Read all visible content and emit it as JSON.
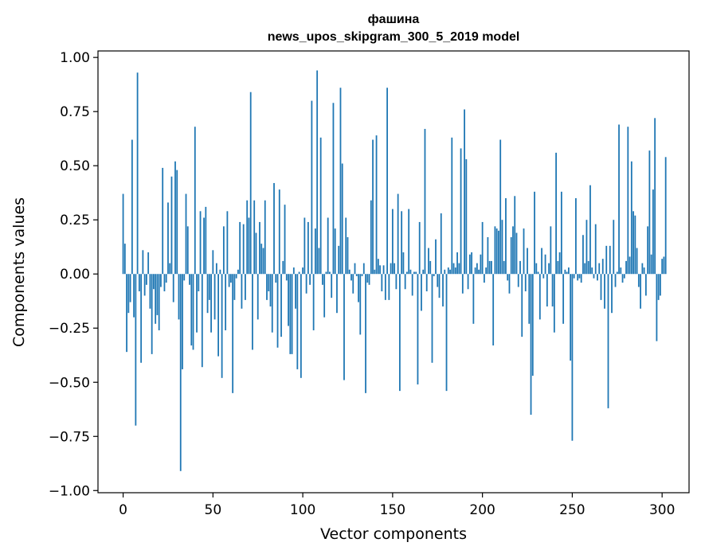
{
  "chart_data": {
    "type": "bar",
    "title": "фашина",
    "subtitle": "news_upos_skipgram_300_5_2019 model",
    "xlabel": "Vector components",
    "ylabel": "Components values",
    "xlim": [
      -14,
      315
    ],
    "ylim": [
      -1.01,
      1.03
    ],
    "xticks": [
      0,
      50,
      100,
      150,
      200,
      250,
      300
    ],
    "yticks": [
      -1.0,
      -0.75,
      -0.5,
      -0.25,
      0.0,
      0.25,
      0.5,
      0.75,
      1.0
    ],
    "ytick_labels": [
      "−1.00",
      "−0.75",
      "−0.50",
      "−0.25",
      "0.00",
      "0.25",
      "0.50",
      "0.75",
      "1.00"
    ],
    "color": "#1f77b4",
    "values": [
      0.37,
      0.14,
      -0.36,
      -0.18,
      -0.13,
      0.62,
      -0.2,
      -0.7,
      0.93,
      -0.08,
      -0.41,
      0.11,
      -0.1,
      -0.05,
      0.1,
      -0.16,
      -0.37,
      -0.07,
      -0.23,
      -0.19,
      -0.26,
      -0.06,
      0.49,
      -0.08,
      -0.04,
      0.33,
      0.05,
      0.45,
      -0.13,
      0.52,
      0.48,
      -0.21,
      -0.91,
      -0.44,
      -0.03,
      0.37,
      0.22,
      -0.05,
      -0.33,
      -0.35,
      0.68,
      -0.27,
      -0.08,
      0.29,
      -0.43,
      0.26,
      0.31,
      -0.18,
      -0.12,
      -0.27,
      0.11,
      -0.21,
      0.05,
      -0.38,
      0.02,
      -0.48,
      0.22,
      -0.26,
      0.29,
      -0.06,
      -0.04,
      -0.55,
      -0.12,
      -0.02,
      0.02,
      0.24,
      -0.16,
      0.23,
      -0.12,
      0.34,
      0.26,
      0.84,
      -0.35,
      0.34,
      0.19,
      -0.21,
      0.24,
      0.14,
      0.12,
      0.34,
      -0.12,
      -0.08,
      -0.15,
      -0.27,
      0.42,
      -0.04,
      -0.34,
      0.39,
      -0.29,
      0.06,
      0.32,
      -0.03,
      -0.24,
      -0.37,
      -0.37,
      0.03,
      -0.16,
      -0.44,
      0.01,
      -0.48,
      0.03,
      0.26,
      -0.09,
      0.24,
      -0.05,
      0.8,
      -0.26,
      0.21,
      0.94,
      0.12,
      0.63,
      -0.05,
      -0.2,
      0.01,
      0.26,
      0.01,
      -0.11,
      0.79,
      0.21,
      -0.18,
      0.13,
      0.86,
      0.51,
      -0.49,
      0.26,
      0.17,
      0.02,
      -0.03,
      -0.09,
      0.05,
      -0.01,
      -0.13,
      -0.28,
      -0.01,
      0.05,
      -0.55,
      -0.04,
      -0.05,
      0.34,
      0.62,
      0.02,
      0.64,
      0.07,
      0.04,
      -0.08,
      0.04,
      -0.12,
      0.86,
      -0.12,
      0.05,
      0.3,
      0.05,
      -0.07,
      0.37,
      -0.54,
      0.29,
      0.1,
      -0.07,
      0.01,
      0.3,
      0.02,
      -0.1,
      0.01,
      0.01,
      -0.51,
      0.24,
      -0.17,
      0.02,
      0.67,
      -0.08,
      0.12,
      0.06,
      -0.41,
      -0.01,
      0.16,
      -0.06,
      -0.11,
      0.28,
      -0.15,
      0.02,
      -0.54,
      0.03,
      0.02,
      0.63,
      0.05,
      0.03,
      0.1,
      0.05,
      0.58,
      -0.09,
      0.76,
      0.53,
      -0.07,
      0.09,
      0.1,
      -0.23,
      0.03,
      0.05,
      0.02,
      0.09,
      0.24,
      -0.04,
      0.03,
      0.17,
      0.06,
      0.06,
      -0.33,
      0.22,
      0.21,
      0.2,
      0.62,
      0.25,
      0.06,
      0.35,
      -0.03,
      -0.09,
      0.17,
      0.22,
      0.36,
      0.19,
      -0.06,
      0.06,
      -0.29,
      0.21,
      -0.08,
      0.12,
      -0.23,
      -0.65,
      -0.47,
      0.38,
      0.05,
      0.01,
      -0.21,
      0.12,
      -0.02,
      0.09,
      -0.15,
      0.05,
      0.22,
      -0.15,
      -0.27,
      0.56,
      0.06,
      0.1,
      0.38,
      -0.23,
      0.02,
      0.01,
      0.03,
      -0.4,
      -0.77,
      -0.02,
      0.35,
      -0.03,
      -0.02,
      -0.04,
      0.18,
      0.05,
      0.25,
      0.06,
      0.41,
      0.03,
      -0.02,
      0.23,
      -0.03,
      0.05,
      -0.12,
      0.07,
      -0.16,
      0.13,
      -0.62,
      0.13,
      -0.18,
      0.25,
      -0.06,
      0.01,
      0.69,
      0.03,
      -0.04,
      -0.02,
      0.06,
      0.68,
      0.08,
      0.52,
      0.29,
      0.27,
      0.12,
      -0.06,
      -0.16,
      0.05,
      0.03,
      -0.1,
      0.22,
      0.57,
      0.09,
      0.39,
      0.72,
      -0.31,
      -0.12,
      -0.1,
      0.07,
      0.08,
      0.54
    ]
  }
}
